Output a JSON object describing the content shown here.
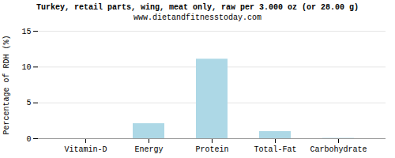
{
  "chart_data": {
    "type": "bar",
    "title": "Turkey, retail parts, wing, meat only, raw per 3.000 oz (or 28.00 g)",
    "subtitle": "www.dietandfitnesstoday.com",
    "categories": [
      "Vitamin-D",
      "Energy",
      "Protein",
      "Total-Fat",
      "Carbohydrate"
    ],
    "values": [
      0.0,
      2.1,
      11.1,
      1.0,
      0.05
    ],
    "color": "#add8e6",
    "ylabel": "Percentage of RDH (%)",
    "ylim": [
      0,
      15
    ],
    "yticks": [
      0,
      5,
      10,
      15
    ],
    "grid": true
  }
}
